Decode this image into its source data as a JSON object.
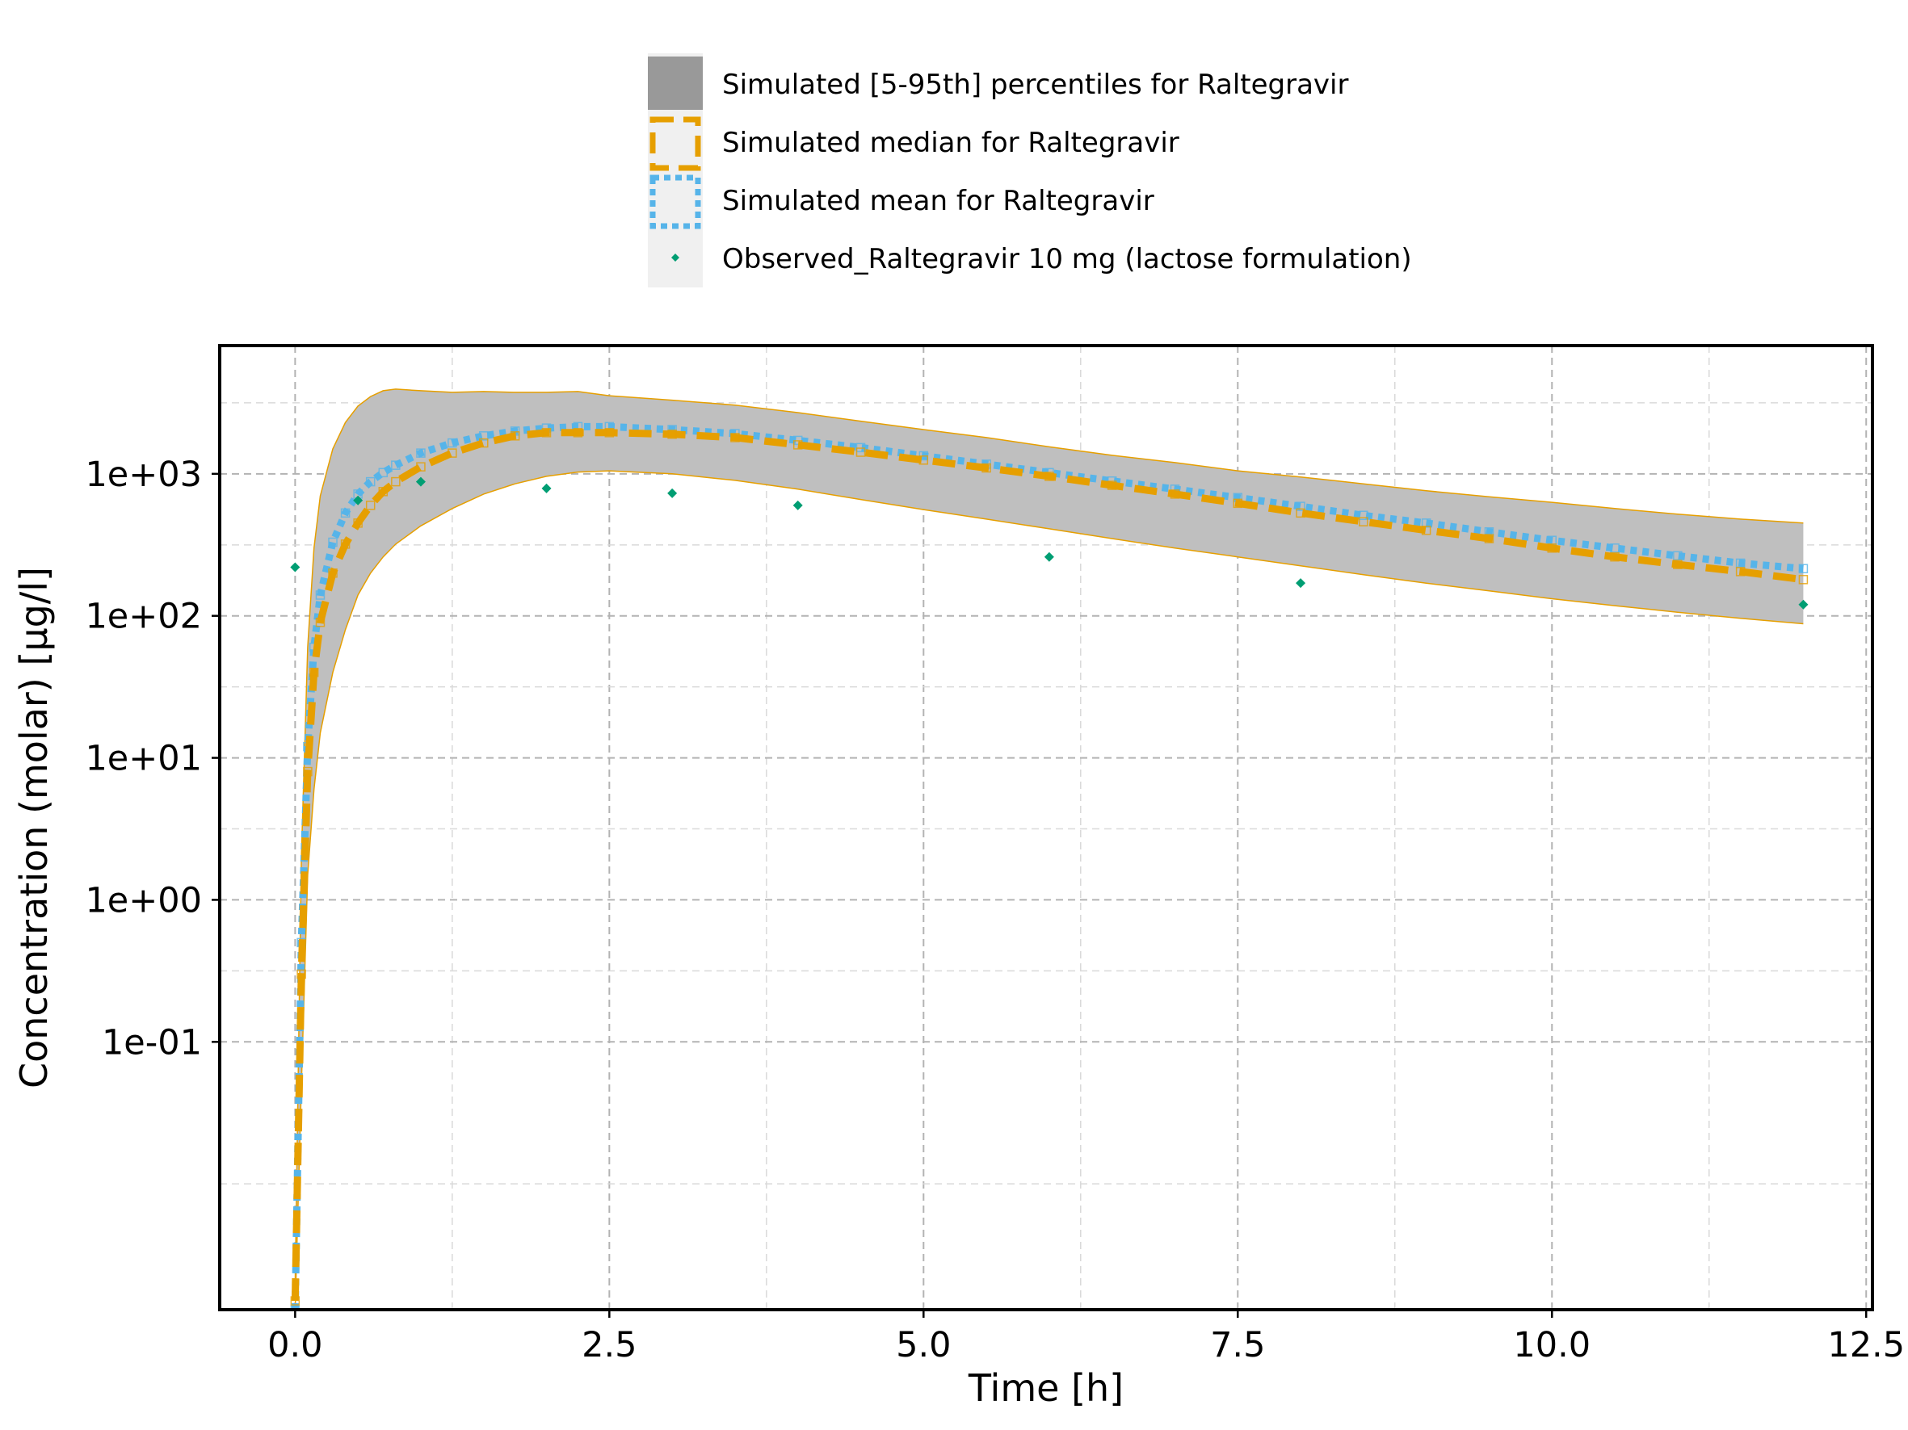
{
  "chart_data": {
    "type": "line",
    "xlabel": "Time [h]",
    "ylabel": "Concentration (molar) [µg/l]",
    "x_scale": "linear",
    "y_scale": "log",
    "xlim": [
      -0.6,
      12.55
    ],
    "ylim": [
      0.0013,
      8000
    ],
    "x_ticks": [
      {
        "value": 0.0,
        "label": "0.0"
      },
      {
        "value": 2.5,
        "label": "2.5"
      },
      {
        "value": 5.0,
        "label": "5.0"
      },
      {
        "value": 7.5,
        "label": "7.5"
      },
      {
        "value": 10.0,
        "label": "10.0"
      },
      {
        "value": 12.5,
        "label": "12.5"
      }
    ],
    "x_minor_ticks": [
      1.25,
      3.75,
      6.25,
      8.75,
      11.25
    ],
    "y_ticks": [
      {
        "value": 0.1,
        "label": "1e-01"
      },
      {
        "value": 1,
        "label": "1e+00"
      },
      {
        "value": 10,
        "label": "1e+01"
      },
      {
        "value": 100,
        "label": "1e+02"
      },
      {
        "value": 1000,
        "label": "1e+03"
      }
    ],
    "y_minor_ticks": [
      0.01,
      0.316,
      3.16,
      31.6,
      316,
      3162
    ],
    "grid": true,
    "legend_position": "top-center, above plot",
    "series": [
      {
        "name": "Simulated [5-95th] percentiles for Raltegravir",
        "kind": "band",
        "color": "#bfbfbf",
        "edge_color": "#e69f00",
        "x": [
          0.0,
          0.05,
          0.1,
          0.15,
          0.2,
          0.3,
          0.4,
          0.5,
          0.6,
          0.7,
          0.8,
          1.0,
          1.25,
          1.5,
          1.75,
          2.0,
          2.25,
          2.5,
          3.0,
          3.5,
          4.0,
          4.5,
          5.0,
          5.5,
          6.0,
          6.5,
          7.0,
          7.5,
          8.0,
          8.5,
          9.0,
          9.5,
          10.0,
          10.5,
          11.0,
          11.5,
          12.0
        ],
        "upper": [
          0.002,
          2.0,
          60,
          300,
          700,
          1500,
          2300,
          3000,
          3500,
          3850,
          3950,
          3850,
          3750,
          3800,
          3750,
          3750,
          3800,
          3550,
          3300,
          3050,
          2700,
          2350,
          2050,
          1800,
          1550,
          1350,
          1200,
          1050,
          950,
          850,
          760,
          690,
          630,
          570,
          520,
          480,
          450
        ],
        "lower": [
          0.0013,
          0.05,
          1.5,
          6,
          15,
          40,
          80,
          140,
          200,
          260,
          320,
          430,
          570,
          720,
          850,
          960,
          1030,
          1050,
          1000,
          900,
          780,
          660,
          560,
          480,
          410,
          350,
          300,
          260,
          225,
          195,
          170,
          150,
          132,
          118,
          106,
          96,
          88
        ]
      },
      {
        "name": "Simulated median for Raltegravir",
        "kind": "line",
        "color": "#e69f00",
        "dash": "dashed",
        "x": [
          0.0,
          0.05,
          0.1,
          0.15,
          0.2,
          0.3,
          0.4,
          0.5,
          0.6,
          0.7,
          0.8,
          1.0,
          1.25,
          1.5,
          1.75,
          2.0,
          2.25,
          2.5,
          3.0,
          3.5,
          4.0,
          4.5,
          5.0,
          5.5,
          6.0,
          6.5,
          7.0,
          7.5,
          8.0,
          8.5,
          9.0,
          9.5,
          10.0,
          10.5,
          11.0,
          11.5,
          12.0
        ],
        "values": [
          0.0015,
          0.3,
          8,
          40,
          90,
          200,
          320,
          450,
          600,
          750,
          880,
          1120,
          1400,
          1650,
          1850,
          1950,
          1950,
          1950,
          1900,
          1800,
          1600,
          1420,
          1250,
          1100,
          960,
          830,
          720,
          620,
          530,
          460,
          400,
          350,
          300,
          260,
          230,
          205,
          180
        ]
      },
      {
        "name": "Simulated mean for Raltegravir",
        "kind": "line",
        "color": "#56b4e9",
        "dash": "dotted",
        "x": [
          0.0,
          0.05,
          0.1,
          0.15,
          0.2,
          0.3,
          0.4,
          0.5,
          0.6,
          0.7,
          0.8,
          1.0,
          1.25,
          1.5,
          1.75,
          2.0,
          2.25,
          2.5,
          3.0,
          3.5,
          4.0,
          4.5,
          5.0,
          5.5,
          6.0,
          6.5,
          7.0,
          7.5,
          8.0,
          8.5,
          9.0,
          9.5,
          10.0,
          10.5,
          11.0,
          11.5,
          12.0
        ],
        "values": [
          0.0013,
          0.5,
          12,
          60,
          140,
          330,
          530,
          720,
          880,
          1020,
          1150,
          1400,
          1650,
          1850,
          2000,
          2100,
          2150,
          2150,
          2050,
          1920,
          1720,
          1530,
          1340,
          1170,
          1020,
          890,
          780,
          680,
          590,
          510,
          450,
          390,
          340,
          300,
          265,
          235,
          215
        ]
      },
      {
        "name": "Observed_Raltegravir 10 mg (lactose formulation)",
        "kind": "scatter",
        "color": "#009e73",
        "x": [
          0.0,
          0.5,
          1.0,
          2.0,
          3.0,
          4.0,
          6.0,
          8.0,
          12.0
        ],
        "values": [
          220,
          650,
          880,
          790,
          730,
          600,
          260,
          170,
          120
        ]
      }
    ]
  }
}
